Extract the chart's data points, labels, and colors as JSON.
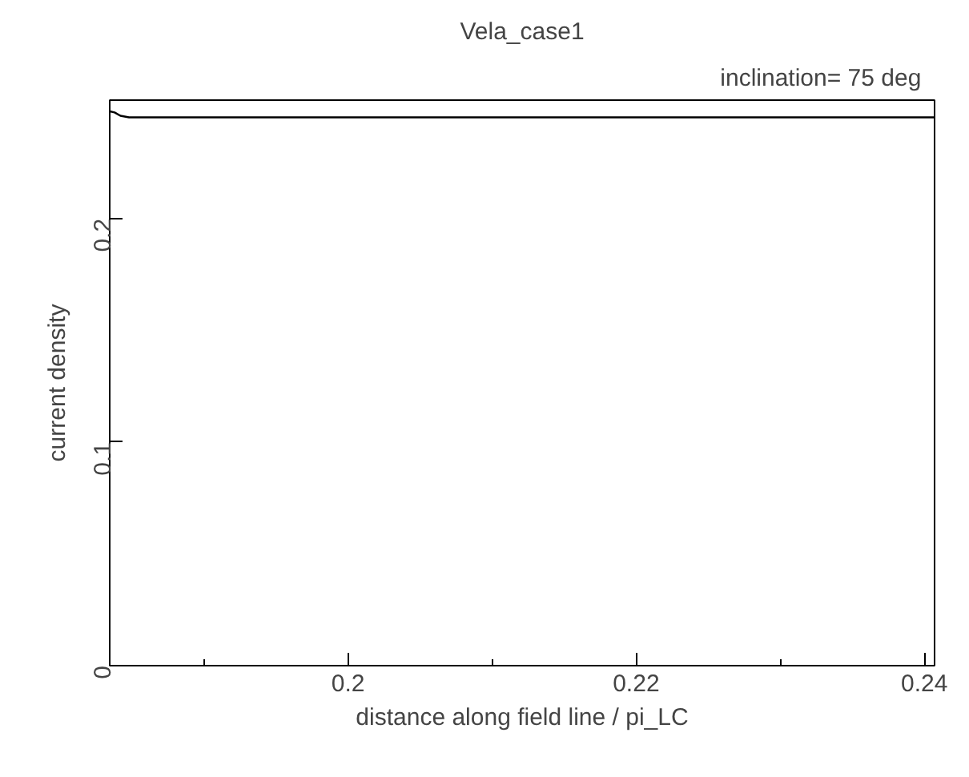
{
  "chart_data": {
    "type": "line",
    "title": "Vela_case1",
    "subtitle": "inclination=  75  deg",
    "xlabel": "distance along field line / pi_LC",
    "ylabel": "current density",
    "xlim": [
      0.18346,
      0.24071
    ],
    "ylim": [
      0,
      0.253
    ],
    "xticks": [
      0.2,
      0.22,
      0.24
    ],
    "yticks": [
      0,
      0.1,
      0.2
    ],
    "series": [
      {
        "color": "#000000",
        "x": [
          0.18346,
          0.1838,
          0.1842,
          0.1848,
          0.19,
          0.2,
          0.21,
          0.22,
          0.23,
          0.24,
          0.24071
        ],
        "values": [
          0.248,
          0.2475,
          0.246,
          0.2453,
          0.2453,
          0.2453,
          0.2453,
          0.2453,
          0.2453,
          0.2453,
          0.2453
        ]
      }
    ],
    "grid": false,
    "line_style": "solid",
    "marker": "none"
  }
}
